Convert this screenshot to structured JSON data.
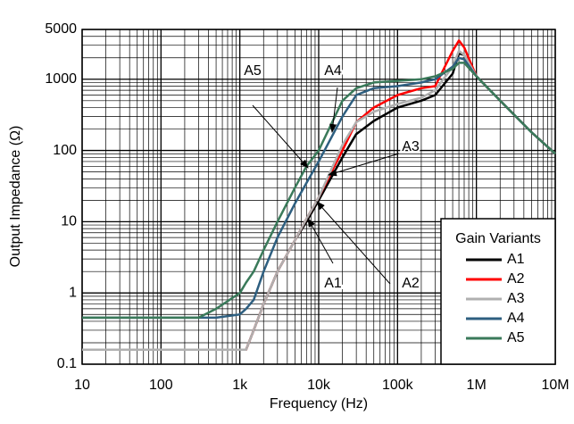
{
  "chart_data": {
    "type": "line",
    "xlabel": "Frequency (Hz)",
    "ylabel": "Output Impedance (Ω)",
    "xscale": "log",
    "yscale": "log",
    "grid": true,
    "legend": "lower right",
    "legend_title": "Gain Variants",
    "xlim": [
      10,
      10000000
    ],
    "ylim": [
      0.1,
      5000
    ],
    "xticks": [
      {
        "value": 10,
        "label": "10"
      },
      {
        "value": 100,
        "label": "100"
      },
      {
        "value": 1000,
        "label": "1k"
      },
      {
        "value": 10000,
        "label": "10k"
      },
      {
        "value": 100000,
        "label": "100k"
      },
      {
        "value": 1000000,
        "label": "1M"
      },
      {
        "value": 10000000,
        "label": "10M"
      }
    ],
    "yticks": [
      0.1,
      1,
      10,
      100,
      1000,
      5000
    ],
    "x": [
      10,
      100,
      300,
      500,
      1000,
      1200,
      1500,
      2000,
      3000,
      5000,
      7000,
      10000,
      20000,
      30000,
      50000,
      100000,
      200000,
      300000,
      500000,
      600000,
      700000,
      1000000,
      2000000,
      5000000,
      10000000
    ],
    "series": [
      {
        "name": "A1",
        "color": "#000000",
        "values": [
          0.16,
          0.16,
          0.16,
          0.16,
          0.16,
          0.16,
          0.3,
          0.7,
          2,
          5.5,
          10,
          20,
          80,
          170,
          260,
          400,
          500,
          600,
          1200,
          2300,
          2200,
          1100,
          500,
          180,
          90
        ]
      },
      {
        "name": "A2",
        "color": "#ff0000",
        "values": [
          0.16,
          0.16,
          0.16,
          0.16,
          0.16,
          0.16,
          0.3,
          0.7,
          2,
          5.5,
          11,
          22,
          100,
          250,
          400,
          600,
          750,
          800,
          2500,
          3500,
          2800,
          1100,
          500,
          180,
          90
        ]
      },
      {
        "name": "A3",
        "color": "#b0b0b0",
        "values": [
          0.16,
          0.16,
          0.16,
          0.16,
          0.16,
          0.16,
          0.3,
          0.7,
          2,
          5.5,
          11,
          22,
          120,
          250,
          350,
          450,
          550,
          700,
          1500,
          2500,
          2200,
          1100,
          500,
          180,
          90
        ]
      },
      {
        "name": "A4",
        "color": "#2e5f80",
        "values": [
          0.45,
          0.45,
          0.45,
          0.45,
          0.5,
          0.6,
          0.8,
          2,
          6,
          18,
          35,
          70,
          300,
          600,
          750,
          800,
          900,
          1000,
          1500,
          2000,
          1900,
          1100,
          500,
          180,
          90
        ]
      },
      {
        "name": "A5",
        "color": "#3a7a5a",
        "values": [
          0.45,
          0.45,
          0.45,
          0.6,
          1,
          1.4,
          2,
          4,
          10,
          30,
          60,
          100,
          500,
          750,
          900,
          950,
          1000,
          1100,
          1400,
          1700,
          1700,
          1100,
          500,
          180,
          90
        ]
      }
    ],
    "annotations": [
      "A5",
      "A4",
      "A3",
      "A1",
      "A2"
    ]
  }
}
